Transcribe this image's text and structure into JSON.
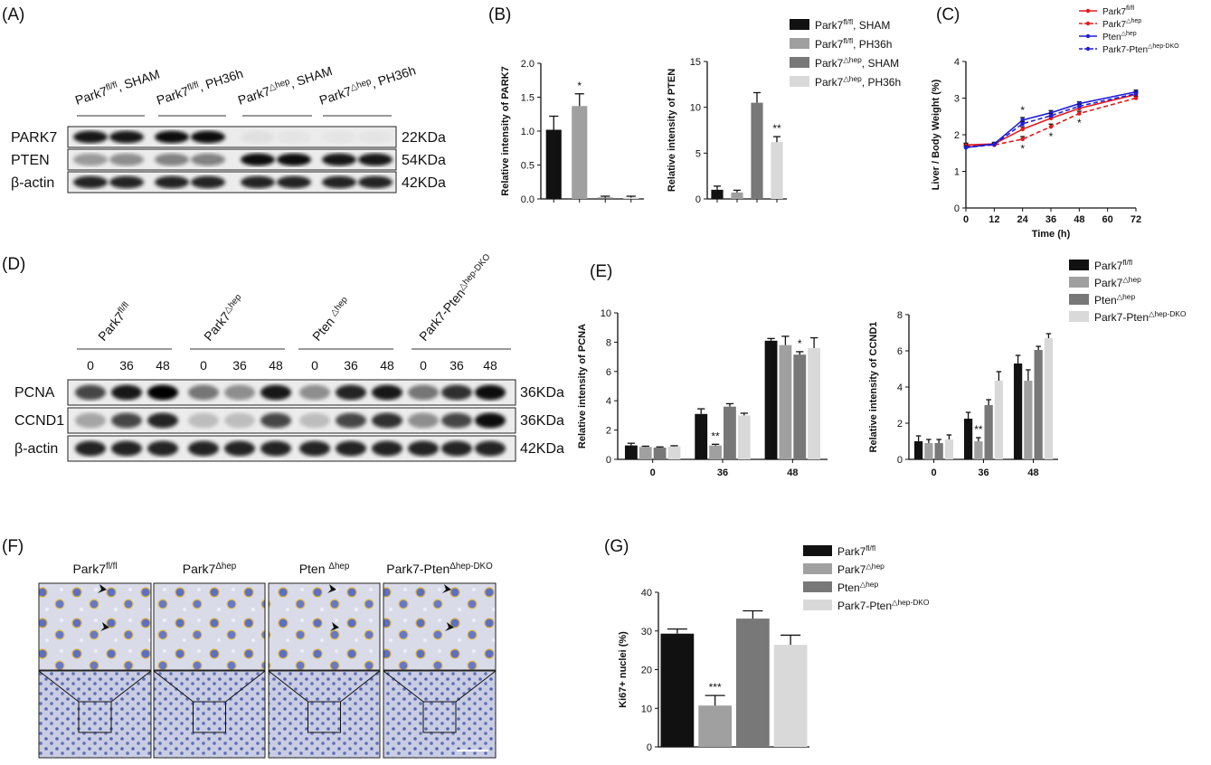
{
  "panel_labels": [
    "(A)",
    "(B)",
    "(C)",
    "(D)",
    "(E)",
    "(F)",
    "(G)"
  ],
  "blots": [
    {
      "lanes": [
        {
          "base": "Park7",
          "sup": "fl/fl",
          "rest": ", SHAM"
        },
        {
          "base": "Park7",
          "sup": "fl/fl",
          "rest": ", PH36h"
        },
        {
          "base": "Park7",
          "sup": "△hep",
          "rest": ", SHAM"
        },
        {
          "base": "Park7",
          "sup": "△hep",
          "rest": ", PH36h"
        }
      ],
      "rows": [
        {
          "protein": "PARK7",
          "size": "22KDa"
        },
        {
          "protein": "PTEN",
          "size": "54KDa"
        },
        {
          "protein": "β-actin",
          "size": "42KDa"
        }
      ]
    },
    {
      "lanes": [
        {
          "base": "Park7",
          "sup": "fl/fl"
        },
        {
          "base": "Park7",
          "sup": "△hep"
        },
        {
          "base": "Pten ",
          "sup": "△hep"
        },
        {
          "base": "Park7-Pten",
          "sup": "△hep-DKO"
        }
      ],
      "timepoints": [
        "0",
        "36",
        "48",
        "0",
        "36",
        "48",
        "0",
        "36",
        "48",
        "0",
        "36",
        "48"
      ],
      "rows": [
        {
          "protein": "PCNA",
          "size": "36KDa"
        },
        {
          "protein": "CCND1",
          "size": "36KDa"
        },
        {
          "protein": "β-actin",
          "size": "42KDa"
        }
      ]
    }
  ],
  "histology": {
    "titles": [
      {
        "base": "Park7",
        "sup": "fl/fl"
      },
      {
        "base": "Park7",
        "sup": "Δhep"
      },
      {
        "base": "Pten ",
        "sup": "Δhep"
      },
      {
        "base": "Park7-Pten",
        "sup": "Δhep-DKO"
      }
    ]
  },
  "legends": [
    {
      "swatch": "box",
      "entries": [
        {
          "name": {
            "base": "Park7",
            "sup": "fl/fl",
            "rest": ", SHAM"
          },
          "color": "#111111"
        },
        {
          "name": {
            "base": "Park7",
            "sup": "fl/fl",
            "rest": ", PH36h"
          },
          "color": "#a0a0a0"
        },
        {
          "name": {
            "base": "Park7",
            "sup": "△hep",
            "rest": ", SHAM"
          },
          "color": "#787878"
        },
        {
          "name": {
            "base": "Park7",
            "sup": "△hep",
            "rest": ", PH36h"
          },
          "color": "#d9d9d9"
        }
      ]
    },
    {
      "swatch": "line",
      "entries": [
        {
          "name": {
            "base": "Park7",
            "sup": "fl/fl"
          },
          "color": "#e41a1c",
          "style": "solid"
        },
        {
          "name": {
            "base": "Park7",
            "sup": "△hep"
          },
          "color": "#e41a1c",
          "style": "dashed"
        },
        {
          "name": {
            "base": "Pten",
            "sup": "△hep"
          },
          "color": "#1f1fd6",
          "style": "solid"
        },
        {
          "name": {
            "base": "Park7-Pten",
            "sup": "△hep-DKO"
          },
          "color": "#1f1fd6",
          "style": "dashed"
        }
      ]
    },
    {
      "swatch": "box",
      "entries": [
        {
          "name": {
            "base": "Park7",
            "sup": "fl/fl"
          },
          "color": "#111111"
        },
        {
          "name": {
            "base": "Park7",
            "sup": "△hep"
          },
          "color": "#a0a0a0"
        },
        {
          "name": {
            "base": "Pten",
            "sup": "△hep"
          },
          "color": "#787878"
        },
        {
          "name": {
            "base": "Park7-Pten",
            "sup": "△hep-DKO"
          },
          "color": "#d9d9d9"
        }
      ]
    },
    {
      "swatch": "box",
      "entries": [
        {
          "name": {
            "base": "Park7",
            "sup": "fl/fl"
          },
          "color": "#111111"
        },
        {
          "name": {
            "base": "Park7",
            "sup": "△hep"
          },
          "color": "#a0a0a0"
        },
        {
          "name": {
            "base": "Pten",
            "sup": "△hep"
          },
          "color": "#787878"
        },
        {
          "name": {
            "base": "Park7-Pten",
            "sup": "△hep-DKO"
          },
          "color": "#d9d9d9"
        }
      ]
    }
  ],
  "chart_data": [
    {
      "type": "bar",
      "y_label": "Relative intensity of PARK7",
      "categories": [
        null,
        null,
        null,
        null
      ],
      "values": [
        1.02,
        1.37,
        0.02,
        0.02
      ],
      "errors": [
        0.2,
        0.18,
        0.02,
        0.02
      ],
      "colors": [
        "#111111",
        "#a0a0a0",
        "#787878",
        "#d9d9d9"
      ],
      "annotations": [
        null,
        "*",
        null,
        null
      ],
      "ylim": [
        0,
        2
      ],
      "yticks": [
        {
          "value": 0,
          "label": "0.0"
        },
        {
          "value": 0.5,
          "label": "0.5"
        },
        {
          "value": 1,
          "label": "1.0"
        },
        {
          "value": 1.5,
          "label": "1.5"
        },
        {
          "value": 2,
          "label": "2.0"
        }
      ]
    },
    {
      "type": "bar",
      "y_label": "Relative intensity of PTEN",
      "categories": [
        null,
        null,
        null,
        null
      ],
      "values": [
        1.0,
        0.7,
        10.5,
        6.2
      ],
      "errors": [
        0.4,
        0.25,
        1.1,
        0.6
      ],
      "colors": [
        "#111111",
        "#a0a0a0",
        "#787878",
        "#d9d9d9"
      ],
      "annotations": [
        null,
        null,
        null,
        "**"
      ],
      "ylim": [
        0,
        15
      ],
      "yticks": [
        0,
        5,
        10,
        15
      ]
    },
    {
      "type": "line",
      "x_label": "Time (h)",
      "y_label": "Liver / Body Weight (%)",
      "x": [
        0,
        12,
        24,
        36,
        48,
        72
      ],
      "series": [
        {
          "color": "#e41a1c",
          "style": "solid",
          "values": [
            1.72,
            1.75,
            2.15,
            2.45,
            2.72,
            3.1
          ],
          "errors": [
            0.05,
            0.04,
            0.07,
            0.06,
            0.06,
            0.05
          ],
          "annotations": [
            null,
            null,
            null,
            null,
            null,
            null
          ]
        },
        {
          "color": "#e41a1c",
          "style": "dashed",
          "values": [
            1.7,
            1.72,
            1.88,
            2.22,
            2.58,
            3.0
          ],
          "errors": [
            0.05,
            0.04,
            0.07,
            0.07,
            0.06,
            0.05
          ],
          "annotations": [
            null,
            null,
            "*",
            "*",
            "*",
            null
          ],
          "annotation_side": "below"
        },
        {
          "color": "#1f1fd6",
          "style": "solid",
          "values": [
            1.65,
            1.75,
            2.4,
            2.6,
            2.85,
            3.17
          ],
          "errors": [
            0.05,
            0.04,
            0.07,
            0.06,
            0.05,
            0.05
          ],
          "annotations": [
            null,
            null,
            "*",
            null,
            null,
            null
          ],
          "annotation_side": "above"
        },
        {
          "color": "#1f1fd6",
          "style": "dashed",
          "values": [
            1.65,
            1.73,
            2.3,
            2.52,
            2.78,
            3.12
          ],
          "errors": [
            0.05,
            0.04,
            0.06,
            0.06,
            0.05,
            0.05
          ],
          "annotations": [
            null,
            null,
            null,
            null,
            null,
            null
          ]
        }
      ],
      "xlim": [
        0,
        72
      ],
      "xticks": [
        0,
        12,
        24,
        36,
        48,
        60,
        72
      ],
      "ylim": [
        0,
        4
      ],
      "yticks": [
        0,
        1,
        2,
        3,
        4
      ]
    },
    {
      "type": "bar",
      "y_label": "Relative intensity of PCNA",
      "categories": [
        "0",
        "36",
        "48"
      ],
      "series": [
        {
          "color": "#111111",
          "values": [
            0.95,
            3.1,
            8.1
          ],
          "errors": [
            0.15,
            0.35,
            0.15
          ],
          "annotations": [
            null,
            null,
            null
          ]
        },
        {
          "color": "#a0a0a0",
          "values": [
            0.85,
            0.95,
            7.8
          ],
          "errors": [
            0.05,
            0.08,
            0.6
          ],
          "annotations": [
            null,
            "**",
            null
          ]
        },
        {
          "color": "#787878",
          "values": [
            0.8,
            3.6,
            7.15
          ],
          "errors": [
            0.05,
            0.2,
            0.2
          ],
          "annotations": [
            null,
            null,
            "*"
          ]
        },
        {
          "color": "#d9d9d9",
          "values": [
            0.88,
            3.0,
            7.6
          ],
          "errors": [
            0.05,
            0.15,
            0.7
          ],
          "annotations": [
            null,
            null,
            null
          ]
        }
      ],
      "ylim": [
        0,
        10
      ],
      "yticks": [
        0,
        2,
        4,
        6,
        8,
        10
      ]
    },
    {
      "type": "bar",
      "y_label": "Relative intensity of CCND1",
      "categories": [
        "0",
        "36",
        "48"
      ],
      "series": [
        {
          "color": "#111111",
          "values": [
            1.0,
            2.25,
            5.3
          ],
          "errors": [
            0.3,
            0.35,
            0.45
          ],
          "annotations": [
            null,
            null,
            null
          ]
        },
        {
          "color": "#a0a0a0",
          "values": [
            0.9,
            1.0,
            4.35
          ],
          "errors": [
            0.2,
            0.2,
            0.6
          ],
          "annotations": [
            null,
            "**",
            null
          ]
        },
        {
          "color": "#787878",
          "values": [
            0.9,
            3.0,
            6.05
          ],
          "errors": [
            0.2,
            0.3,
            0.2
          ],
          "annotations": [
            null,
            null,
            null
          ]
        },
        {
          "color": "#d9d9d9",
          "values": [
            1.1,
            4.35,
            6.7
          ],
          "errors": [
            0.25,
            0.5,
            0.25
          ],
          "annotations": [
            null,
            null,
            null
          ]
        }
      ],
      "ylim": [
        0,
        8
      ],
      "yticks": [
        0,
        2,
        4,
        6,
        8
      ]
    },
    {
      "type": "bar",
      "y_label": "Ki67+ nuclei (%)",
      "values": [
        29.3,
        10.7,
        33.2,
        26.4
      ],
      "errors": [
        1.2,
        2.6,
        2.0,
        2.5
      ],
      "colors": [
        "#111111",
        "#a0a0a0",
        "#787878",
        "#d9d9d9"
      ],
      "annotations": [
        null,
        "***",
        null,
        null
      ],
      "ylim": [
        0,
        40
      ],
      "yticks": [
        0,
        10,
        20,
        30,
        40
      ]
    }
  ]
}
